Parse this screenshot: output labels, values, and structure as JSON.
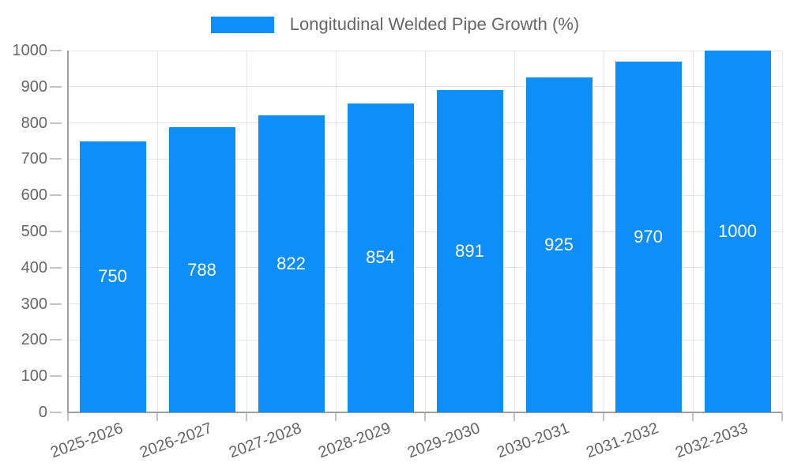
{
  "chart_data": {
    "type": "bar",
    "title": "",
    "legend_label": "Longitudinal Welded Pipe Growth (%)",
    "legend_position": "top",
    "categories": [
      "2025-2026",
      "2026-2027",
      "2027-2028",
      "2028-2029",
      "2029-2030",
      "2030-2031",
      "2031-2032",
      "2032-2033"
    ],
    "values": [
      750,
      788,
      822,
      854,
      891,
      925,
      970,
      1000
    ],
    "xlabel": "",
    "ylabel": "",
    "ylim": [
      0,
      1000
    ],
    "yticks": [
      0,
      100,
      200,
      300,
      400,
      500,
      600,
      700,
      800,
      900,
      1000
    ],
    "grid": true,
    "x_label_rotation_deg": -20,
    "colors": {
      "bar": "#0d8ef8",
      "grid": "#e6e6e6",
      "axis": "#a0a0a0",
      "tick": "#c4c4c4",
      "tick_text": "#666666",
      "legend_text": "#666666",
      "bar_label_text": "#ffffff",
      "background": "#ffffff"
    }
  }
}
